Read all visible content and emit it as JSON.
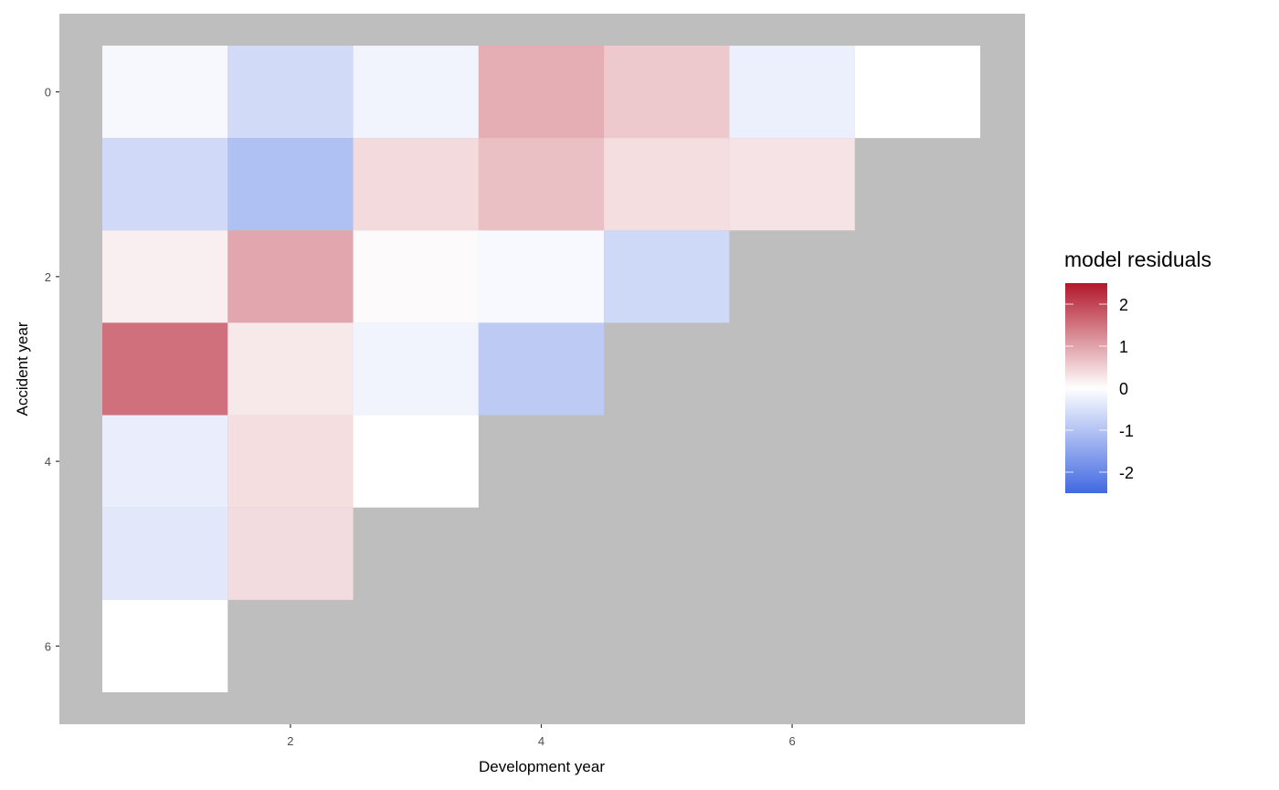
{
  "chart_data": {
    "type": "heatmap",
    "xlabel": "Development year",
    "ylabel": "Accident year",
    "x_ticks": [
      2,
      4,
      6
    ],
    "y_ticks": [
      0,
      2,
      4,
      6
    ],
    "xlim": [
      0.5,
      7.5
    ],
    "ylim": [
      -0.5,
      6.5
    ],
    "y_reversed": true,
    "panel_background": "#bebebe",
    "grid": false,
    "legend": {
      "title": "model residuals",
      "position": "right",
      "ticks": [
        2,
        1,
        0,
        -1,
        -2
      ],
      "labels": [
        "2",
        "1",
        "0",
        "-1",
        "-2"
      ],
      "range": [
        -2.5,
        2.5
      ],
      "colors": {
        "low": "#4169e1",
        "mid": "#ffffff",
        "high": "#b2182b"
      }
    },
    "cells": [
      {
        "x": 1,
        "y": 0,
        "value": -0.12
      },
      {
        "x": 2,
        "y": 0,
        "value": -0.6
      },
      {
        "x": 3,
        "y": 0,
        "value": -0.18
      },
      {
        "x": 4,
        "y": 0,
        "value": 0.88
      },
      {
        "x": 5,
        "y": 0,
        "value": 0.58
      },
      {
        "x": 6,
        "y": 0,
        "value": -0.25
      },
      {
        "x": 7,
        "y": 0,
        "value": 0.0
      },
      {
        "x": 1,
        "y": 1,
        "value": -0.62
      },
      {
        "x": 2,
        "y": 1,
        "value": -1.05
      },
      {
        "x": 3,
        "y": 1,
        "value": 0.4
      },
      {
        "x": 4,
        "y": 1,
        "value": 0.68
      },
      {
        "x": 5,
        "y": 1,
        "value": 0.36
      },
      {
        "x": 6,
        "y": 1,
        "value": 0.3
      },
      {
        "x": 1,
        "y": 2,
        "value": 0.18
      },
      {
        "x": 2,
        "y": 2,
        "value": 0.95
      },
      {
        "x": 3,
        "y": 2,
        "value": 0.05
      },
      {
        "x": 4,
        "y": 2,
        "value": -0.1
      },
      {
        "x": 5,
        "y": 2,
        "value": -0.65
      },
      {
        "x": 1,
        "y": 3,
        "value": 1.55
      },
      {
        "x": 2,
        "y": 3,
        "value": 0.25
      },
      {
        "x": 3,
        "y": 3,
        "value": -0.18
      },
      {
        "x": 4,
        "y": 3,
        "value": -0.88
      },
      {
        "x": 1,
        "y": 4,
        "value": -0.28
      },
      {
        "x": 2,
        "y": 4,
        "value": 0.36
      },
      {
        "x": 3,
        "y": 4,
        "value": 0.0
      },
      {
        "x": 1,
        "y": 5,
        "value": -0.38
      },
      {
        "x": 2,
        "y": 5,
        "value": 0.38
      },
      {
        "x": 1,
        "y": 6,
        "value": 0.0
      }
    ]
  }
}
